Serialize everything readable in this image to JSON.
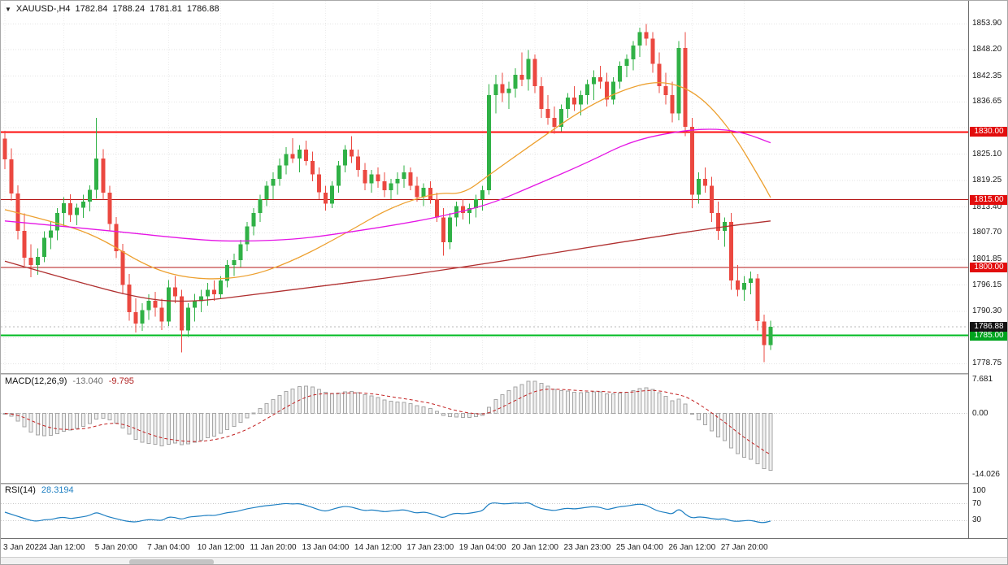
{
  "header": {
    "symbol_period": "XAUUSD-,H4",
    "open": "1782.84",
    "high": "1788.24",
    "low": "1781.81",
    "close": "1786.88"
  },
  "chart_data": {
    "type": "candlestick",
    "symbol": "XAUUSD-",
    "timeframe": "H4",
    "ylim": [
      1777.0,
      1859.0
    ],
    "up_color": "#30b146",
    "down_color": "#eb4840",
    "price_axis_labels": [
      "1853.90",
      "1848.20",
      "1842.35",
      "1836.65",
      "1825.10",
      "1819.25",
      "1813.40",
      "1807.70",
      "1801.85",
      "1796.15",
      "1790.30",
      "1778.75"
    ],
    "grid_levels": [
      1853.9,
      1848.2,
      1842.35,
      1836.65,
      1830.95,
      1825.1,
      1819.25,
      1813.4,
      1807.7,
      1801.85,
      1796.15,
      1790.3,
      1784.45,
      1778.75
    ],
    "time_labels": [
      {
        "i": 0,
        "t": "3 Jan 2022"
      },
      {
        "i": 9,
        "t": "4 Jan 12:00"
      },
      {
        "i": 17,
        "t": "5 Jan 20:00"
      },
      {
        "i": 25,
        "t": "7 Jan 04:00"
      },
      {
        "i": 33,
        "t": "10 Jan 12:00"
      },
      {
        "i": 41,
        "t": "11 Jan 20:00"
      },
      {
        "i": 49,
        "t": "13 Jan 04:00"
      },
      {
        "i": 57,
        "t": "14 Jan 12:00"
      },
      {
        "i": 65,
        "t": "17 Jan 23:00"
      },
      {
        "i": 73,
        "t": "19 Jan 04:00"
      },
      {
        "i": 81,
        "t": "20 Jan 12:00"
      },
      {
        "i": 89,
        "t": "23 Jan 23:00"
      },
      {
        "i": 97,
        "t": "25 Jan 04:00"
      },
      {
        "i": 105,
        "t": "26 Jan 12:00"
      },
      {
        "i": 113,
        "t": "27 Jan 20:00"
      }
    ],
    "hlines": [
      {
        "value": 1830.0,
        "label": "1830.00",
        "line_color": "#fe0d0d",
        "line_width": 2,
        "tag_color": "#e20d0d"
      },
      {
        "value": 1815.0,
        "label": "1815.00",
        "line_color": "#b51717",
        "line_width": 1,
        "tag_color": "#e20d0d"
      },
      {
        "value": 1800.0,
        "label": "1800.00",
        "line_color": "#b51717",
        "line_width": 1,
        "tag_color": "#e20d0d"
      },
      {
        "value": 1785.0,
        "label": "1785.00",
        "line_color": "#00bb22",
        "line_width": 2,
        "tag_color": "#00a31e"
      }
    ],
    "price_tag": {
      "value": 1786.88,
      "label": "1786.88",
      "tag_color": "#141414"
    },
    "moving_averages": [
      {
        "name": "ma-slow-darkred",
        "color": "#b03030",
        "points": [
          [
            0,
            1801.4
          ],
          [
            12,
            1796.4
          ],
          [
            22,
            1792.8
          ],
          [
            29,
            1792.4
          ],
          [
            39,
            1794.2
          ],
          [
            49,
            1796.0
          ],
          [
            59,
            1797.8
          ],
          [
            69,
            1799.9
          ],
          [
            79,
            1802.1
          ],
          [
            89,
            1804.4
          ],
          [
            99,
            1806.7
          ],
          [
            109,
            1808.9
          ],
          [
            117,
            1810.3
          ]
        ]
      },
      {
        "name": "ma-fast-orange",
        "color": "#eda02f",
        "points": [
          [
            0,
            1812.8
          ],
          [
            7,
            1810.3
          ],
          [
            14,
            1807.1
          ],
          [
            22,
            1799.9
          ],
          [
            29,
            1797.3
          ],
          [
            37,
            1797.8
          ],
          [
            44,
            1801.4
          ],
          [
            52,
            1807.5
          ],
          [
            59,
            1813.4
          ],
          [
            66,
            1816.6
          ],
          [
            70,
            1816.2
          ],
          [
            74,
            1820.5
          ],
          [
            81,
            1827.7
          ],
          [
            89,
            1835.7
          ],
          [
            96,
            1840.2
          ],
          [
            101,
            1841.3
          ],
          [
            106,
            1838.4
          ],
          [
            111,
            1830.4
          ],
          [
            116,
            1818.2
          ],
          [
            117,
            1815.5
          ]
        ]
      },
      {
        "name": "ma-mid-magenta",
        "color": "#e516e5",
        "points": [
          [
            0,
            1810.3
          ],
          [
            15,
            1808.3
          ],
          [
            30,
            1806.0
          ],
          [
            37,
            1805.8
          ],
          [
            45,
            1806.3
          ],
          [
            52,
            1807.7
          ],
          [
            60,
            1809.5
          ],
          [
            66,
            1811.1
          ],
          [
            74,
            1813.9
          ],
          [
            81,
            1818.2
          ],
          [
            89,
            1823.2
          ],
          [
            96,
            1828.2
          ],
          [
            104,
            1830.4
          ],
          [
            109,
            1830.7
          ],
          [
            113,
            1829.8
          ],
          [
            117,
            1827.6
          ]
        ]
      }
    ],
    "candles": [
      [
        1828.5,
        1830.2,
        1821.8,
        1823.9
      ],
      [
        1823.9,
        1826.4,
        1814.8,
        1816.4
      ],
      [
        1816.4,
        1818.2,
        1806.2,
        1808.1
      ],
      [
        1808.1,
        1812.0,
        1800.4,
        1802.2
      ],
      [
        1802.2,
        1805.1,
        1797.9,
        1800.6
      ],
      [
        1800.6,
        1804.2,
        1798.4,
        1802.4
      ],
      [
        1802.4,
        1808.0,
        1801.2,
        1806.6
      ],
      [
        1806.6,
        1810.3,
        1804.1,
        1808.2
      ],
      [
        1808.2,
        1813.1,
        1806.0,
        1812.1
      ],
      [
        1812.1,
        1815.6,
        1809.2,
        1814.2
      ],
      [
        1814.2,
        1816.2,
        1810.1,
        1811.6
      ],
      [
        1811.6,
        1814.1,
        1809.4,
        1813.2
      ],
      [
        1813.2,
        1816.1,
        1811.0,
        1814.6
      ],
      [
        1814.6,
        1818.2,
        1812.4,
        1817.2
      ],
      [
        1817.2,
        1833.1,
        1815.2,
        1824.1
      ],
      [
        1824.1,
        1826.2,
        1815.0,
        1816.6
      ],
      [
        1816.6,
        1818.1,
        1808.2,
        1809.6
      ],
      [
        1809.6,
        1811.2,
        1802.1,
        1803.6
      ],
      [
        1803.6,
        1805.2,
        1794.1,
        1796.2
      ],
      [
        1796.2,
        1798.6,
        1788.2,
        1790.1
      ],
      [
        1790.1,
        1793.2,
        1785.6,
        1787.6
      ],
      [
        1787.6,
        1792.1,
        1786.0,
        1790.6
      ],
      [
        1790.6,
        1794.1,
        1788.4,
        1792.6
      ],
      [
        1792.6,
        1794.6,
        1789.1,
        1791.1
      ],
      [
        1791.1,
        1793.1,
        1786.2,
        1788.1
      ],
      [
        1788.1,
        1797.2,
        1787.1,
        1795.6
      ],
      [
        1795.6,
        1798.1,
        1792.1,
        1793.6
      ],
      [
        1793.6,
        1795.1,
        1781.2,
        1786.1
      ],
      [
        1786.1,
        1792.1,
        1784.6,
        1791.1
      ],
      [
        1791.1,
        1794.2,
        1788.1,
        1792.6
      ],
      [
        1792.6,
        1795.1,
        1790.1,
        1793.6
      ],
      [
        1793.6,
        1796.6,
        1791.6,
        1795.1
      ],
      [
        1795.1,
        1797.1,
        1792.6,
        1794.1
      ],
      [
        1794.1,
        1798.1,
        1793.1,
        1797.1
      ],
      [
        1797.1,
        1801.6,
        1795.6,
        1800.6
      ],
      [
        1800.6,
        1803.1,
        1798.1,
        1801.6
      ],
      [
        1801.6,
        1806.1,
        1800.1,
        1805.1
      ],
      [
        1805.1,
        1810.1,
        1803.6,
        1809.1
      ],
      [
        1809.1,
        1813.1,
        1807.1,
        1812.1
      ],
      [
        1812.1,
        1816.1,
        1810.1,
        1815.1
      ],
      [
        1815.1,
        1819.1,
        1813.6,
        1818.1
      ],
      [
        1818.1,
        1821.1,
        1815.1,
        1819.6
      ],
      [
        1819.6,
        1824.1,
        1818.1,
        1822.6
      ],
      [
        1822.6,
        1826.6,
        1820.6,
        1825.1
      ],
      [
        1825.1,
        1828.6,
        1823.1,
        1824.1
      ],
      [
        1824.1,
        1827.1,
        1821.1,
        1826.1
      ],
      [
        1826.1,
        1828.1,
        1822.6,
        1823.6
      ],
      [
        1823.6,
        1825.6,
        1819.1,
        1820.6
      ],
      [
        1820.6,
        1822.1,
        1815.1,
        1816.6
      ],
      [
        1816.6,
        1818.1,
        1812.6,
        1814.1
      ],
      [
        1814.1,
        1819.1,
        1813.1,
        1818.1
      ],
      [
        1818.1,
        1823.6,
        1816.6,
        1822.6
      ],
      [
        1822.6,
        1827.1,
        1821.1,
        1826.1
      ],
      [
        1826.1,
        1829.1,
        1823.1,
        1824.6
      ],
      [
        1824.6,
        1826.1,
        1820.1,
        1821.6
      ],
      [
        1821.6,
        1823.1,
        1817.1,
        1818.6
      ],
      [
        1818.6,
        1821.6,
        1816.6,
        1820.6
      ],
      [
        1820.6,
        1822.1,
        1817.6,
        1819.1
      ],
      [
        1819.1,
        1821.1,
        1815.6,
        1817.1
      ],
      [
        1817.1,
        1819.6,
        1815.1,
        1818.6
      ],
      [
        1818.6,
        1821.1,
        1816.1,
        1819.6
      ],
      [
        1819.6,
        1822.6,
        1817.6,
        1821.1
      ],
      [
        1821.1,
        1822.1,
        1817.1,
        1818.1
      ],
      [
        1818.1,
        1820.1,
        1814.6,
        1815.6
      ],
      [
        1815.6,
        1818.6,
        1813.6,
        1817.6
      ],
      [
        1817.6,
        1819.1,
        1814.1,
        1815.1
      ],
      [
        1815.1,
        1816.6,
        1810.1,
        1811.1
      ],
      [
        1811.1,
        1813.1,
        1802.6,
        1805.6
      ],
      [
        1805.6,
        1812.1,
        1804.1,
        1811.1
      ],
      [
        1811.1,
        1814.6,
        1809.1,
        1813.6
      ],
      [
        1813.6,
        1815.1,
        1810.6,
        1812.1
      ],
      [
        1812.1,
        1814.1,
        1809.6,
        1813.1
      ],
      [
        1813.1,
        1816.1,
        1811.1,
        1815.1
      ],
      [
        1815.1,
        1818.1,
        1812.6,
        1817.1
      ],
      [
        1817.1,
        1840.6,
        1816.1,
        1838.1
      ],
      [
        1838.1,
        1842.6,
        1834.1,
        1840.6
      ],
      [
        1840.6,
        1843.1,
        1836.6,
        1838.6
      ],
      [
        1838.6,
        1841.1,
        1835.1,
        1839.6
      ],
      [
        1839.6,
        1844.1,
        1837.6,
        1842.6
      ],
      [
        1842.6,
        1847.6,
        1840.1,
        1841.6
      ],
      [
        1841.6,
        1848.1,
        1839.1,
        1846.1
      ],
      [
        1846.1,
        1847.1,
        1838.6,
        1840.1
      ],
      [
        1840.1,
        1842.1,
        1833.1,
        1835.1
      ],
      [
        1835.1,
        1838.1,
        1831.6,
        1833.1
      ],
      [
        1833.1,
        1835.6,
        1829.6,
        1831.1
      ],
      [
        1831.1,
        1836.1,
        1830.1,
        1835.1
      ],
      [
        1835.1,
        1838.6,
        1833.1,
        1837.6
      ],
      [
        1837.6,
        1840.1,
        1834.6,
        1836.1
      ],
      [
        1836.1,
        1839.1,
        1833.6,
        1838.1
      ],
      [
        1838.1,
        1841.6,
        1836.1,
        1840.6
      ],
      [
        1840.6,
        1843.6,
        1837.1,
        1842.1
      ],
      [
        1842.1,
        1844.6,
        1839.6,
        1841.1
      ],
      [
        1841.1,
        1843.1,
        1835.6,
        1837.1
      ],
      [
        1837.1,
        1842.1,
        1836.1,
        1841.1
      ],
      [
        1841.1,
        1845.6,
        1839.6,
        1844.6
      ],
      [
        1844.6,
        1847.1,
        1842.1,
        1846.1
      ],
      [
        1846.1,
        1850.1,
        1843.6,
        1849.1
      ],
      [
        1849.1,
        1853.1,
        1846.6,
        1852.1
      ],
      [
        1852.1,
        1853.9,
        1849.1,
        1850.6
      ],
      [
        1850.6,
        1852.1,
        1843.1,
        1845.1
      ],
      [
        1845.1,
        1847.6,
        1838.6,
        1840.1
      ],
      [
        1840.1,
        1843.1,
        1836.1,
        1838.1
      ],
      [
        1838.1,
        1841.1,
        1832.1,
        1834.1
      ],
      [
        1834.1,
        1850.1,
        1832.6,
        1848.6
      ],
      [
        1848.6,
        1852.1,
        1829.1,
        1831.1
      ],
      [
        1831.1,
        1833.1,
        1813.1,
        1816.1
      ],
      [
        1816.1,
        1821.1,
        1814.1,
        1819.6
      ],
      [
        1819.6,
        1822.1,
        1816.6,
        1818.1
      ],
      [
        1818.1,
        1820.1,
        1810.1,
        1812.1
      ],
      [
        1812.1,
        1814.6,
        1806.1,
        1808.1
      ],
      [
        1808.1,
        1811.1,
        1804.6,
        1810.1
      ],
      [
        1810.1,
        1812.1,
        1795.1,
        1797.1
      ],
      [
        1797.1,
        1800.6,
        1793.6,
        1795.1
      ],
      [
        1795.1,
        1798.1,
        1792.6,
        1796.6
      ],
      [
        1796.6,
        1799.1,
        1794.1,
        1797.6
      ],
      [
        1797.6,
        1798.6,
        1786.1,
        1788.1
      ],
      [
        1788.1,
        1789.6,
        1779.1,
        1782.84
      ],
      [
        1782.84,
        1788.24,
        1781.81,
        1786.88
      ]
    ],
    "indicators": {
      "macd": {
        "label": "MACD(12,26,9)",
        "value_main": "-13.040",
        "value_signal": "-9.795",
        "fast": 12,
        "slow": 26,
        "signal": 9,
        "ylim": [
          -15.8,
          8.8
        ],
        "axis_labels": [
          "7.681",
          "0.00",
          "-14.026"
        ],
        "hist_fill": "#efefef",
        "hist_stroke": "#a6a6a6",
        "signal_color": "#c22020"
      },
      "rsi": {
        "label": "RSI(14)",
        "value": "28.3194",
        "period": 14,
        "levels": [
          70,
          30
        ],
        "axis_labels": [
          "100",
          "70",
          "30"
        ],
        "line_color": "#1e7fc2"
      }
    }
  }
}
